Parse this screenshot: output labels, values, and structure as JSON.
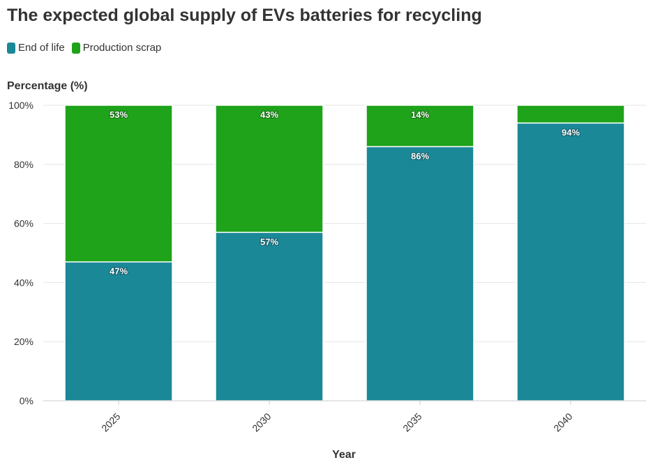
{
  "chart_data": {
    "type": "bar",
    "stacked": true,
    "title": "The expected global supply of EVs batteries for recycling",
    "xlabel": "Year",
    "ylabel": "Percentage (%)",
    "categories": [
      "2025",
      "2030",
      "2035",
      "2040"
    ],
    "series": [
      {
        "name": "End of life",
        "values": [
          47,
          57,
          86,
          94
        ],
        "color": "#1b8898"
      },
      {
        "name": "Production scrap",
        "values": [
          53,
          43,
          14,
          6
        ],
        "color": "#1ea31a"
      }
    ],
    "value_labels": {
      "End of life": [
        "47%",
        "57%",
        "86%",
        "94%"
      ],
      "Production scrap": [
        "53%",
        "43%",
        "14%",
        ""
      ]
    },
    "ylim": [
      0,
      100
    ],
    "yticks": [
      0,
      20,
      40,
      60,
      80,
      100
    ],
    "ytick_labels": [
      "0%",
      "20%",
      "40%",
      "60%",
      "80%",
      "100%"
    ],
    "grid": true,
    "legend_position": "top-left"
  }
}
